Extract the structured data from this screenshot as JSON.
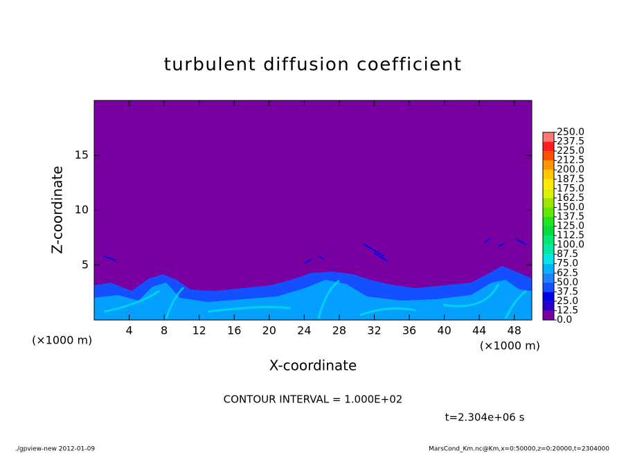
{
  "chart_data": {
    "type": "contour",
    "title": "turbulent diffusion coefficient",
    "xlabel": "X-coordinate",
    "ylabel": "Z-coordinate",
    "x_unit": "(×1000 m)",
    "y_unit": "(×1000 m)",
    "xlim": [
      0,
      50
    ],
    "ylim": [
      0,
      20
    ],
    "xticks": [
      4,
      8,
      12,
      16,
      20,
      24,
      28,
      32,
      36,
      40,
      44,
      48
    ],
    "yticks": [
      5,
      10,
      15
    ],
    "colorbar": {
      "levels": [
        {
          "value": 0,
          "label": "0.0"
        },
        12.5,
        {
          "value": 25,
          "label": "25.0"
        },
        37.5,
        {
          "value": 50,
          "label": "50.0"
        },
        62.5,
        {
          "value": 75,
          "label": "75.0"
        },
        87.5,
        {
          "value": 100,
          "label": "100.0"
        },
        112.5,
        {
          "value": 125,
          "label": "125.0"
        },
        137.5,
        {
          "value": 150,
          "label": "150.0"
        },
        162.5,
        {
          "value": 175,
          "label": "175.0"
        },
        187.5,
        {
          "value": 200,
          "label": "200.0"
        },
        212.5,
        {
          "value": 225,
          "label": "225.0"
        },
        237.5,
        {
          "value": 250,
          "label": "250.0"
        }
      ],
      "colors": [
        "#7800a0",
        "#2800c8",
        "#0000e6",
        "#1450ff",
        "#1e82ff",
        "#00b4ff",
        "#00e6e6",
        "#00e6aa",
        "#00e678",
        "#00dc3c",
        "#1ee61e",
        "#64e600",
        "#a0e600",
        "#dcf000",
        "#ffeb00",
        "#ffc800",
        "#ff9600",
        "#ff5000",
        "#ff1e1e",
        "#ff7878"
      ]
    },
    "annotations": [
      "CONTOUR INTERVAL = 1.000E+02",
      "t=2.304e+06 s"
    ],
    "footer_left": "./gpview-new  2012-01-09",
    "footer_right": "MarsCond_Km.nc@Km,x=0:50000,z=0:20000,t=2304000"
  }
}
